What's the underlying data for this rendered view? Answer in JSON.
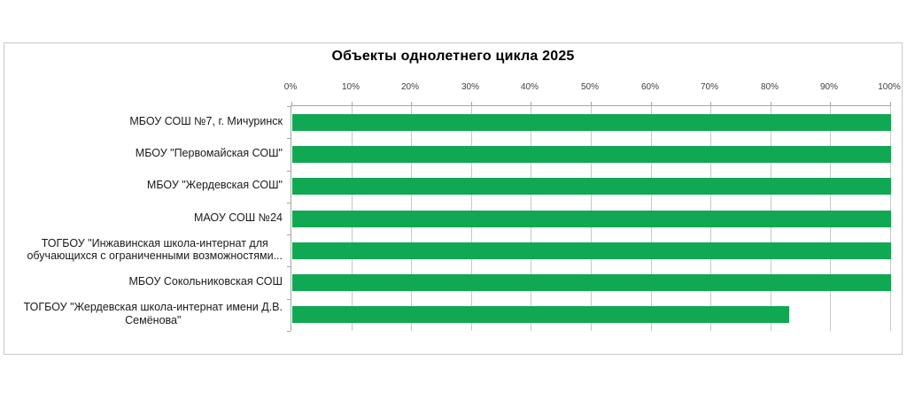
{
  "chart_data": {
    "type": "bar",
    "orientation": "horizontal",
    "title": "Объекты однолетнего цикла 2025",
    "categories": [
      "МБОУ СОШ №7, г. Мичуринск",
      "МБОУ \"Первомайская СОШ\"",
      "МБОУ \"Жердевская СОШ\"",
      "МАОУ СОШ №24",
      "ТОГБОУ \"Инжавинская школа-интернат для\nобучающихся с ограниченными возможностями...",
      "МБОУ Сокольниковская СОШ",
      "ТОГБОУ \"Жердевская школа-интернат имени Д.В.\nСемёнова\"",
      ""
    ],
    "values": [
      100,
      100,
      100,
      100,
      100,
      100,
      83
    ],
    "x_ticks": [
      "0%",
      "10%",
      "20%",
      "30%",
      "40%",
      "50%",
      "60%",
      "70%",
      "80%",
      "90%",
      "100%"
    ],
    "xlim": [
      0,
      100
    ],
    "x_tick_step": 10,
    "legend": false,
    "gridlines": true,
    "colors": {
      "bar": "#10a853",
      "gridline": "#c8c8c8",
      "axis": "#a6a6a6",
      "tick_label": "#404040",
      "category_label": "#1a1a1a",
      "frame_border": "#c9c9c9"
    }
  }
}
